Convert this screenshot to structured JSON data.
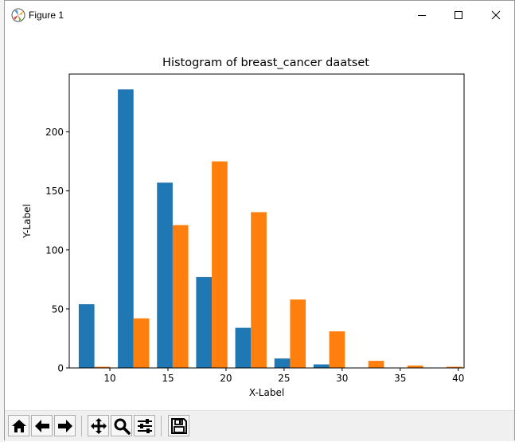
{
  "window": {
    "title": "Figure 1",
    "controls": [
      "minimize",
      "maximize",
      "close"
    ]
  },
  "chart_data": {
    "type": "bar",
    "title": "Histogram of breast_cancer daatset",
    "xlabel": "X-Label",
    "ylabel": "Y-Label",
    "xlim": [
      6.5,
      40.5
    ],
    "ylim": [
      0,
      249
    ],
    "xticks": [
      10,
      15,
      20,
      25,
      30,
      35,
      40
    ],
    "yticks": [
      0,
      50,
      100,
      150,
      200
    ],
    "bins": [
      [
        6.98,
        10.35
      ],
      [
        10.35,
        13.72
      ],
      [
        13.72,
        17.09
      ],
      [
        17.09,
        20.46
      ],
      [
        20.46,
        23.83
      ],
      [
        23.83,
        27.2
      ],
      [
        27.2,
        30.57
      ],
      [
        30.57,
        33.94
      ],
      [
        33.94,
        37.31
      ],
      [
        37.31,
        40.68
      ]
    ],
    "series": [
      {
        "color": "#1f77b4",
        "values": [
          54,
          236,
          157,
          77,
          34,
          8,
          3,
          0,
          0,
          0
        ]
      },
      {
        "color": "#ff7f0e",
        "values": [
          1,
          42,
          121,
          175,
          132,
          58,
          31,
          6,
          2,
          1
        ]
      }
    ],
    "grid": false,
    "legend": "none"
  },
  "toolbar": {
    "buttons": [
      {
        "name": "home-button",
        "icon": "home-icon"
      },
      {
        "name": "back-button",
        "icon": "arrow-left-icon"
      },
      {
        "name": "forward-button",
        "icon": "arrow-right-icon"
      },
      {
        "name": "pan-button",
        "icon": "move-icon"
      },
      {
        "name": "zoom-button",
        "icon": "magnifier-icon"
      },
      {
        "name": "subplots-button",
        "icon": "sliders-icon"
      },
      {
        "name": "save-button",
        "icon": "floppy-disk-icon"
      }
    ]
  },
  "colors": {
    "series1": "#1f77b4",
    "series2": "#ff7f0e",
    "toolbar_bg": "#f0f0f0"
  }
}
